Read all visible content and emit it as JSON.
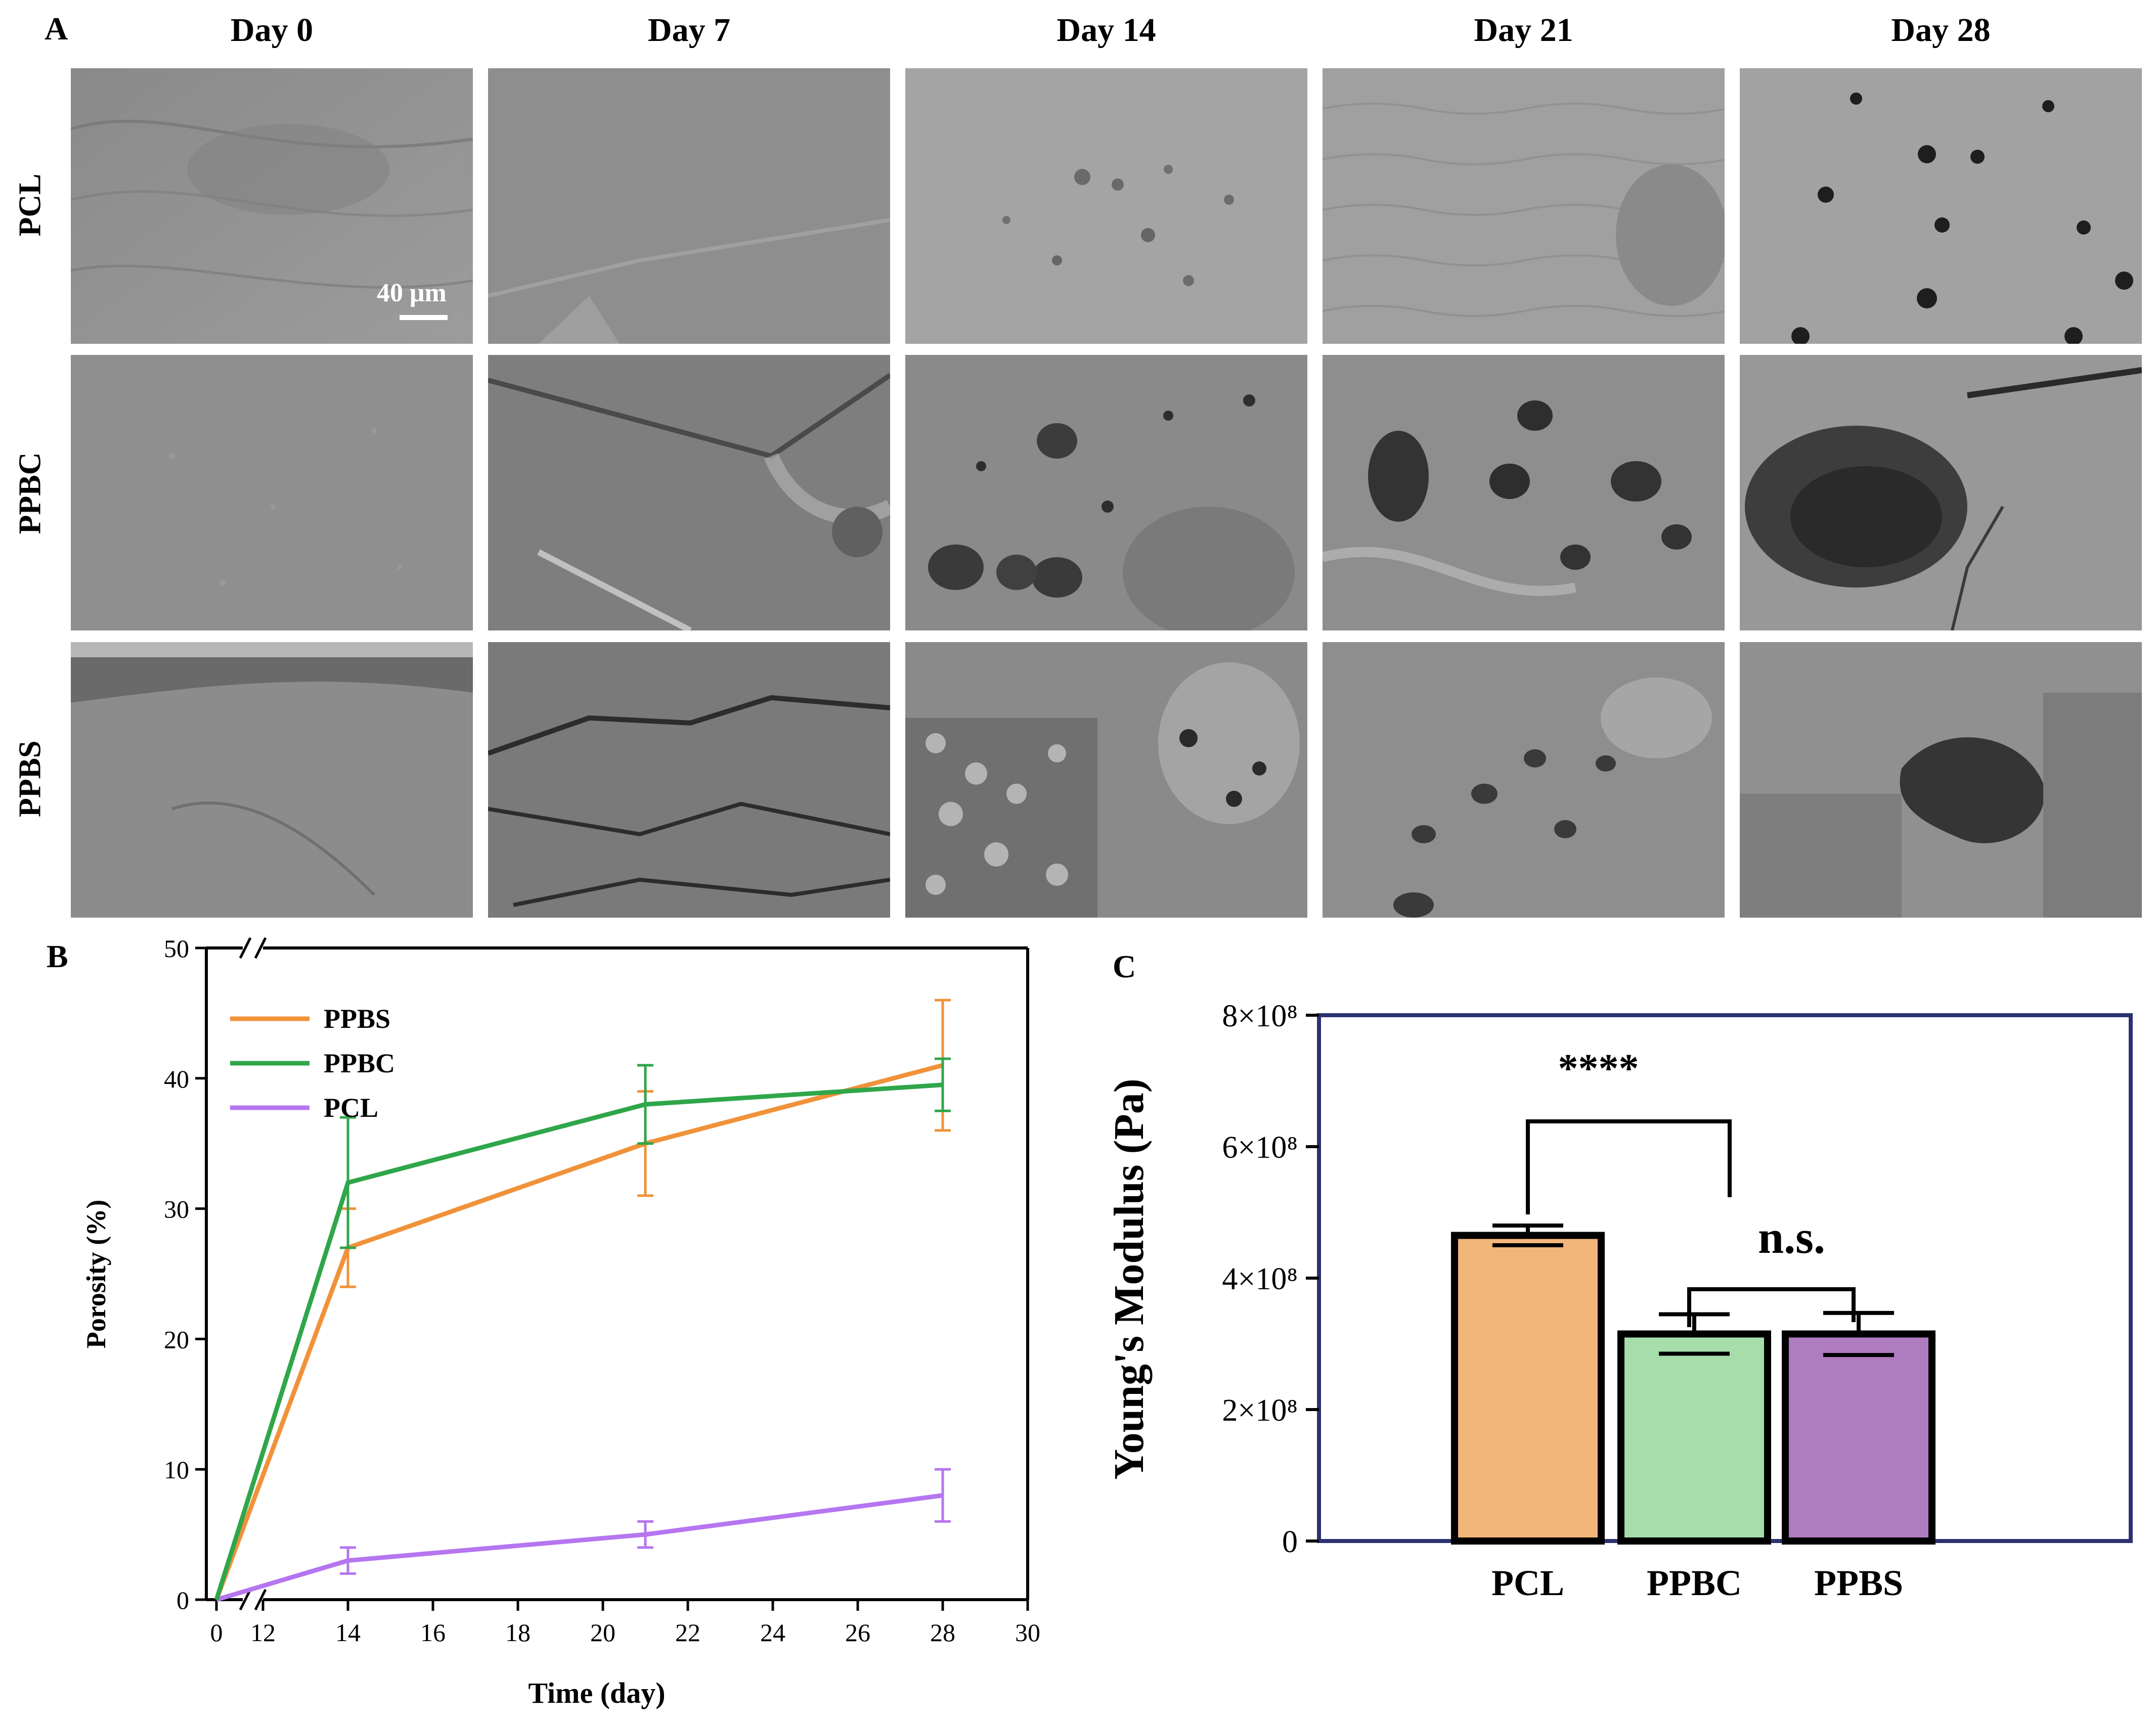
{
  "panel_a": {
    "label": "A",
    "columns": [
      "Day 0",
      "Day 7",
      "Day 14",
      "Day 21",
      "Day 28"
    ],
    "rows": [
      "PCL",
      "PPBC",
      "PPBS"
    ],
    "scale_bar": "40 μm"
  },
  "chart_data": [
    {
      "type": "line",
      "panel_label": "B",
      "xlabel": "Time (day)",
      "ylabel": "Porosity (%)",
      "x": [
        0,
        14,
        21,
        28
      ],
      "x_axis_break": [
        0,
        12
      ],
      "xticks": [
        "0",
        "12",
        "14",
        "16",
        "18",
        "20",
        "22",
        "24",
        "26",
        "28",
        "30"
      ],
      "yticks": [
        "0",
        "10",
        "20",
        "30",
        "40",
        "50"
      ],
      "ylim": [
        0,
        50
      ],
      "legend_position": "top-left",
      "series": [
        {
          "name": "PPBS",
          "color": "#f0923a",
          "values": [
            0,
            27,
            35,
            41
          ],
          "errors": [
            0,
            3,
            4,
            5
          ]
        },
        {
          "name": "PPBC",
          "color": "#2fa64a",
          "values": [
            0,
            32,
            38,
            39.5
          ],
          "errors": [
            0,
            5,
            3,
            2
          ]
        },
        {
          "name": "PCL",
          "color": "#b576f0",
          "values": [
            0,
            3,
            5,
            8
          ],
          "errors": [
            0,
            1,
            1,
            2
          ]
        }
      ]
    },
    {
      "type": "bar",
      "panel_label": "C",
      "ylabel": "Young's Modulus (Pa)",
      "categories": [
        "PCL",
        "PPBC",
        "PPBS"
      ],
      "values": [
        465000000,
        315000000,
        315000000
      ],
      "errors": [
        15000000,
        30000000,
        32000000
      ],
      "colors": [
        "#f2b57a",
        "#a6ddaa",
        "#b07cc0"
      ],
      "ylim": [
        0,
        800000000
      ],
      "yticks": [
        "0",
        "2×10⁸",
        "4×10⁸",
        "6×10⁸",
        "8×10⁸"
      ],
      "significance": [
        {
          "label": "****",
          "from": "PCL",
          "to": "PPBC"
        },
        {
          "label": "n.s.",
          "from": "PPBC",
          "to": "PPBS"
        }
      ]
    }
  ]
}
